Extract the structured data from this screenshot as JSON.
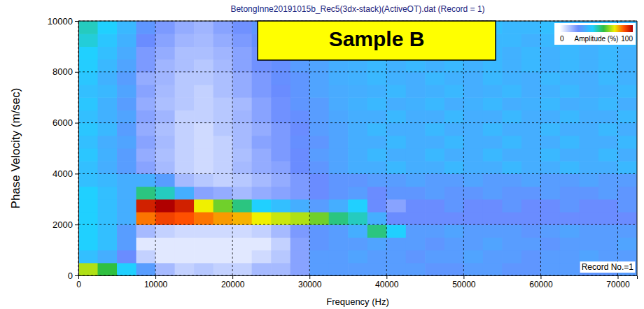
{
  "chart_data": {
    "type": "heatmap",
    "title": "BetongInne20191015b_Rec5(3dx-stack)(ActiveOT).dat (Record = 1)",
    "x_label": "Frequency (Hz)",
    "y_label": "Phase Velocity (m/sec)",
    "annotations": [
      {
        "text": "Sample B"
      },
      {
        "text": "Record No.=1"
      }
    ],
    "xlim": [
      0,
      72500
    ],
    "ylim": [
      0,
      10000
    ],
    "xticks": [
      0,
      10000,
      20000,
      30000,
      40000,
      50000,
      60000,
      70000
    ],
    "yticks": [
      0,
      2000,
      4000,
      6000,
      8000,
      10000
    ],
    "grid": true,
    "x": [
      1250,
      3750,
      6250,
      8750,
      11250,
      13750,
      16250,
      18750,
      21250,
      23750,
      26250,
      28750,
      31250,
      33750,
      36250,
      38750,
      41250,
      43750,
      46250,
      48750,
      51250,
      53750,
      56250,
      58750,
      61250,
      63750,
      66250,
      68750,
      71250
    ],
    "y": [
      250,
      750,
      1250,
      1750,
      2250,
      2750,
      3250,
      3750,
      4250,
      4750,
      5250,
      5750,
      6250,
      6750,
      7250,
      7750,
      8250,
      8750,
      9250,
      9750
    ],
    "z": [
      [
        70,
        60,
        45,
        30,
        15,
        10,
        12,
        10,
        10,
        15,
        15,
        20,
        30,
        30,
        30,
        30,
        30,
        30,
        28,
        28,
        30,
        30,
        28,
        28,
        30,
        30,
        28,
        28,
        30
      ],
      [
        40,
        35,
        25,
        10,
        5,
        5,
        5,
        5,
        5,
        8,
        12,
        20,
        30,
        30,
        32,
        30,
        30,
        28,
        30,
        30,
        32,
        30,
        30,
        28,
        30,
        30,
        32,
        30,
        30
      ],
      [
        45,
        40,
        30,
        5,
        5,
        5,
        5,
        5,
        5,
        5,
        10,
        20,
        28,
        30,
        30,
        32,
        30,
        30,
        28,
        30,
        30,
        32,
        30,
        30,
        28,
        30,
        30,
        30,
        32
      ],
      [
        45,
        40,
        30,
        15,
        10,
        8,
        8,
        8,
        8,
        10,
        15,
        22,
        28,
        30,
        35,
        55,
        45,
        30,
        30,
        32,
        30,
        30,
        30,
        28,
        30,
        32,
        30,
        30,
        30
      ],
      [
        45,
        40,
        35,
        85,
        90,
        88,
        85,
        82,
        80,
        75,
        72,
        70,
        65,
        55,
        50,
        35,
        25,
        25,
        25,
        25,
        25,
        25,
        25,
        25,
        25,
        25,
        25,
        25,
        25
      ],
      [
        45,
        40,
        35,
        95,
        100,
        95,
        75,
        65,
        55,
        45,
        40,
        35,
        30,
        35,
        45,
        25,
        20,
        25,
        25,
        28,
        25,
        25,
        28,
        25,
        25,
        28,
        25,
        25,
        28
      ],
      [
        45,
        40,
        35,
        55,
        50,
        35,
        20,
        18,
        15,
        18,
        20,
        22,
        25,
        28,
        30,
        25,
        28,
        28,
        30,
        28,
        28,
        30,
        28,
        28,
        30,
        28,
        28,
        30,
        28
      ],
      [
        40,
        38,
        35,
        35,
        30,
        15,
        12,
        10,
        12,
        15,
        18,
        22,
        25,
        28,
        28,
        30,
        30,
        32,
        30,
        30,
        32,
        30,
        30,
        32,
        30,
        30,
        32,
        30,
        30
      ],
      [
        40,
        35,
        30,
        20,
        15,
        10,
        8,
        10,
        15,
        18,
        20,
        25,
        28,
        32,
        35,
        35,
        38,
        35,
        35,
        38,
        35,
        35,
        38,
        35,
        35,
        38,
        35,
        35,
        38
      ],
      [
        42,
        36,
        30,
        18,
        14,
        10,
        8,
        10,
        14,
        18,
        22,
        25,
        30,
        32,
        35,
        38,
        35,
        35,
        38,
        35,
        35,
        38,
        35,
        35,
        38,
        35,
        35,
        38,
        35
      ],
      [
        40,
        35,
        32,
        20,
        15,
        10,
        8,
        10,
        15,
        20,
        22,
        26,
        28,
        32,
        35,
        35,
        38,
        35,
        35,
        38,
        35,
        35,
        38,
        35,
        35,
        38,
        35,
        35,
        38
      ],
      [
        42,
        38,
        30,
        18,
        14,
        10,
        8,
        12,
        15,
        18,
        22,
        25,
        30,
        32,
        35,
        38,
        35,
        35,
        38,
        35,
        35,
        38,
        35,
        35,
        38,
        35,
        35,
        38,
        35
      ],
      [
        40,
        36,
        32,
        20,
        16,
        10,
        10,
        12,
        16,
        20,
        24,
        26,
        30,
        33,
        35,
        35,
        38,
        35,
        35,
        38,
        35,
        35,
        38,
        35,
        35,
        38,
        35,
        35,
        38
      ],
      [
        42,
        36,
        30,
        18,
        14,
        12,
        10,
        12,
        15,
        20,
        24,
        28,
        30,
        34,
        36,
        38,
        35,
        36,
        38,
        35,
        36,
        38,
        35,
        36,
        38,
        35,
        36,
        38,
        35
      ],
      [
        40,
        38,
        32,
        20,
        15,
        12,
        10,
        14,
        18,
        22,
        25,
        28,
        32,
        34,
        35,
        36,
        38,
        35,
        36,
        38,
        35,
        36,
        38,
        35,
        36,
        38,
        35,
        36,
        38
      ],
      [
        42,
        36,
        30,
        18,
        16,
        12,
        12,
        14,
        18,
        22,
        26,
        28,
        32,
        35,
        36,
        38,
        36,
        35,
        38,
        36,
        35,
        38,
        36,
        35,
        38,
        36,
        35,
        38,
        36
      ],
      [
        44,
        38,
        32,
        22,
        16,
        14,
        12,
        15,
        20,
        24,
        26,
        30,
        32,
        35,
        36,
        38,
        36,
        38,
        36,
        38,
        36,
        38,
        36,
        38,
        36,
        38,
        36,
        38,
        36
      ],
      [
        45,
        40,
        34,
        22,
        18,
        14,
        14,
        16,
        20,
        24,
        28,
        30,
        34,
        36,
        38,
        38,
        36,
        38,
        36,
        38,
        36,
        38,
        36,
        38,
        36,
        38,
        36,
        38,
        36
      ],
      [
        48,
        42,
        36,
        25,
        20,
        16,
        15,
        18,
        22,
        26,
        28,
        32,
        34,
        36,
        38,
        38,
        38,
        36,
        38,
        38,
        36,
        38,
        38,
        36,
        38,
        38,
        36,
        38,
        38
      ],
      [
        50,
        45,
        38,
        28,
        22,
        18,
        16,
        20,
        24,
        28,
        30,
        32,
        35,
        38,
        38,
        40,
        38,
        38,
        40,
        38,
        38,
        40,
        38,
        38,
        40,
        38,
        38,
        40,
        38
      ]
    ],
    "colorbar": {
      "label": "Amplitude (%)",
      "range": [
        0,
        100
      ],
      "ticks": [
        0,
        100
      ]
    }
  }
}
